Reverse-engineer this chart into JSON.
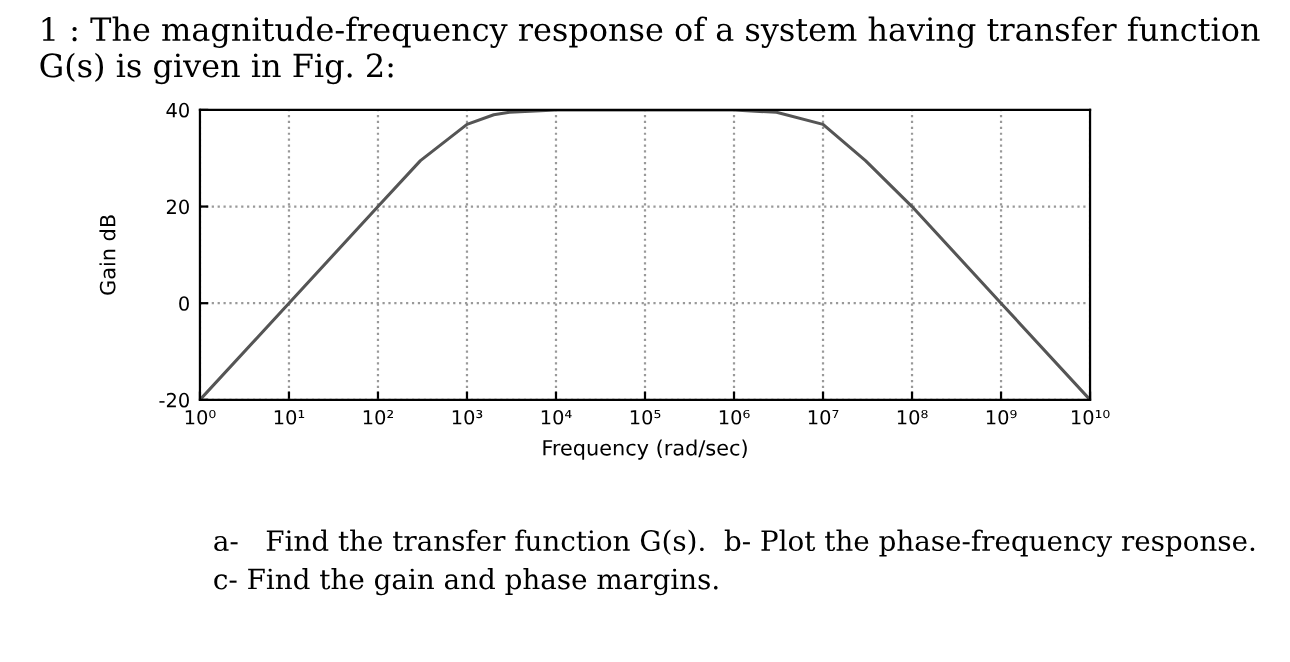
{
  "chart_data": {
    "type": "line",
    "title": "1 : The magnitude-frequency response of a system having transfer function G(s) is given in Fig. 2:",
    "xlabel": "Frequency (rad/sec)",
    "ylabel": "Gain dB",
    "x": [
      1,
      10,
      100,
      300,
      1000,
      2000,
      3000,
      10000,
      1000000,
      3000000,
      10000000,
      30000000,
      100000000,
      1000000000,
      10000000000
    ],
    "series": [
      {
        "color": "#555555",
        "values": [
          -20,
          0,
          20,
          29.5,
          37,
          39,
          39.5,
          40,
          40,
          39.5,
          37,
          29.5,
          20,
          0,
          -20
        ]
      }
    ],
    "log": "x",
    "xlim": [
      1,
      10000000000
    ],
    "ylim": [
      -20,
      40
    ],
    "xticks": [
      {
        "value": 1,
        "label": "10⁰"
      },
      {
        "value": 10,
        "label": "10¹"
      },
      {
        "value": 100,
        "label": "10²"
      },
      {
        "value": 1000,
        "label": "10³"
      },
      {
        "value": 10000,
        "label": "10⁴"
      },
      {
        "value": 100000,
        "label": "10⁵"
      },
      {
        "value": 1000000,
        "label": "10⁶"
      },
      {
        "value": 10000000,
        "label": "10⁷"
      },
      {
        "value": 100000000,
        "label": "10⁸"
      },
      {
        "value": 1000000000,
        "label": "10⁹"
      },
      {
        "value": 10000000000,
        "label": "10¹⁰"
      }
    ],
    "yticks": [
      -20,
      0,
      20,
      40
    ],
    "grid": true,
    "line_style": "solid",
    "marker": "none",
    "annotations": [
      "a-   Find the transfer function G(s).  b- Plot the phase-frequency response.",
      "c- Find the gain and phase margins."
    ]
  }
}
